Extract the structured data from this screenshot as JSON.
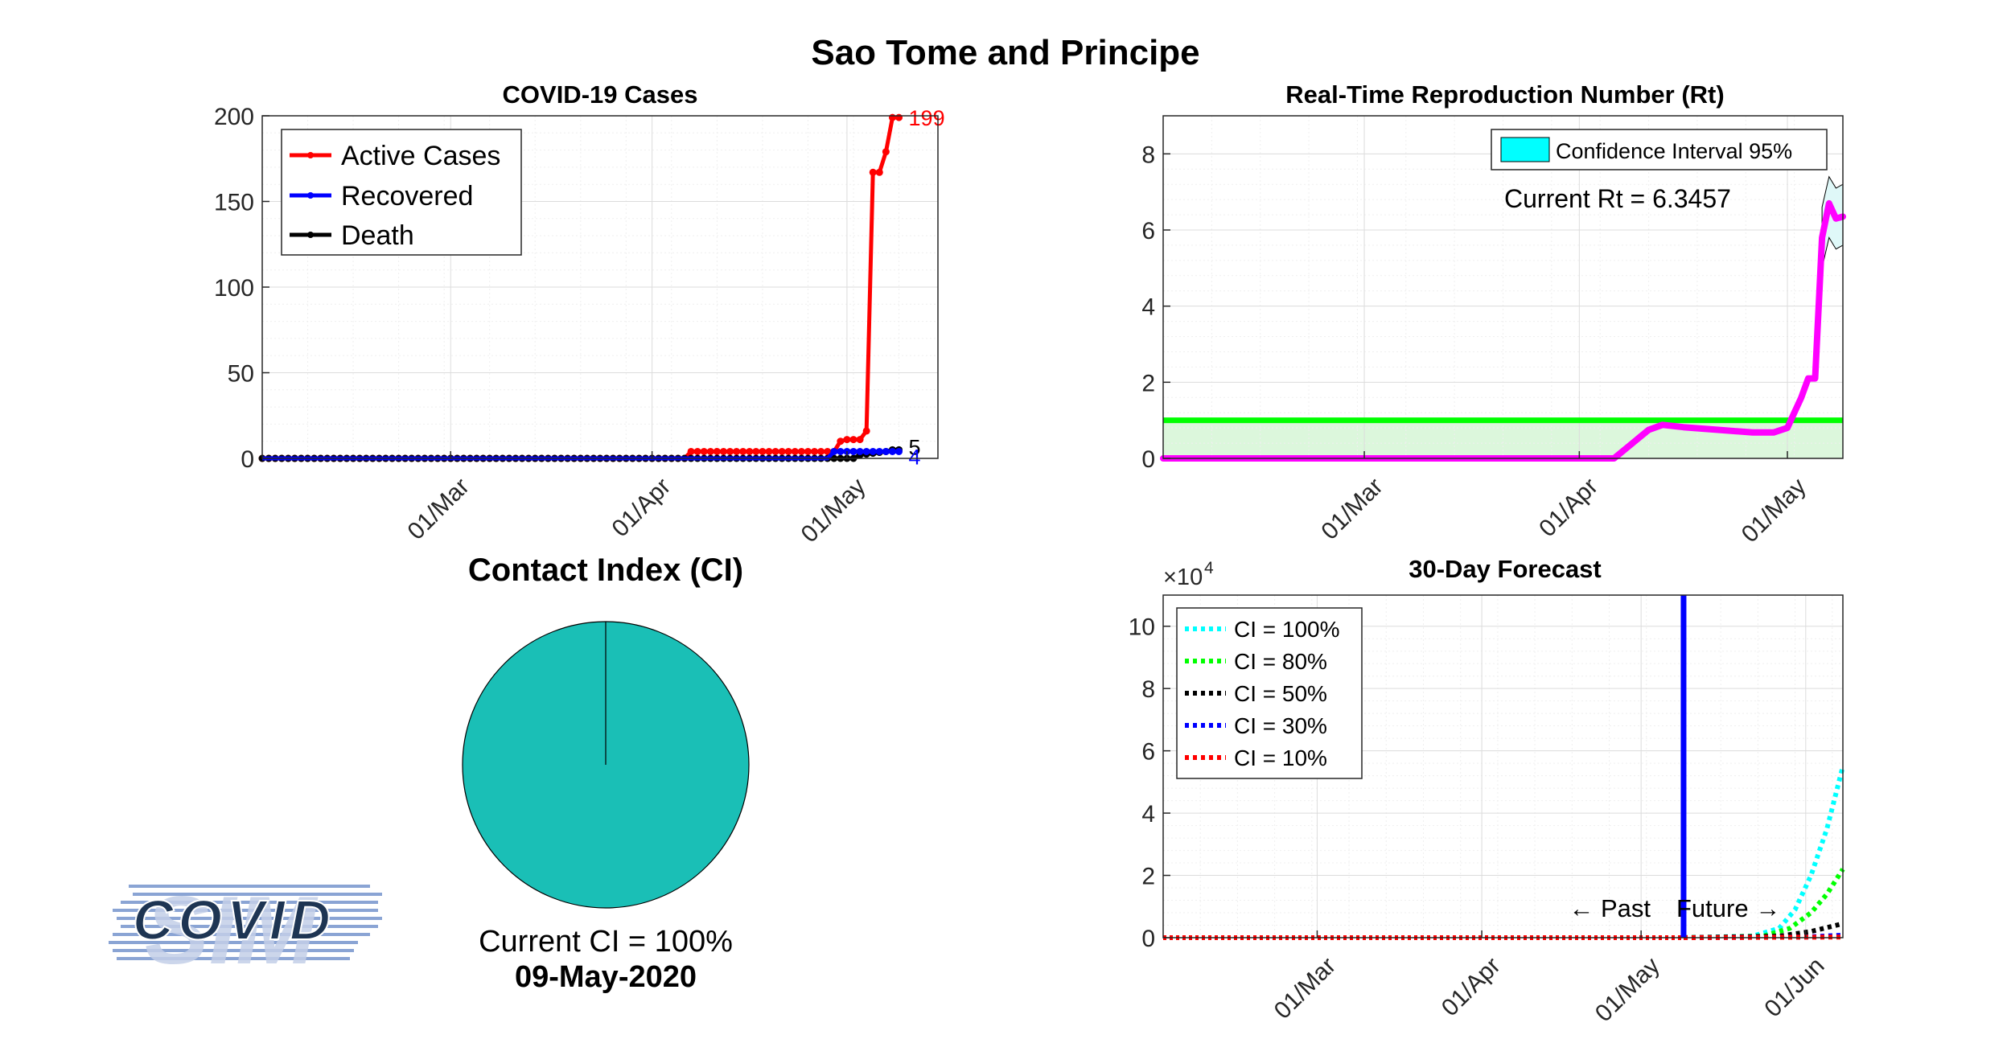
{
  "figure": {
    "title": "Sao Tome and Principe",
    "logo_text": "COVID",
    "logo_sim": "SIM"
  },
  "chart_data": [
    {
      "id": "cases",
      "type": "line",
      "title": "COVID-19 Cases",
      "xlabel": "",
      "ylabel": "",
      "x_start": "2020-02-01",
      "x_end": "2020-05-09",
      "xlim": [
        "2020-02-01",
        "2020-05-15"
      ],
      "ylim": [
        0,
        200
      ],
      "yticks": [
        0,
        50,
        100,
        150,
        200
      ],
      "xtick_labels": [
        "01/Mar",
        "01/Apr",
        "01/May"
      ],
      "xtick_dates": [
        "2020-03-01",
        "2020-04-01",
        "2020-05-01"
      ],
      "grid": true,
      "legend_position": "top-left",
      "series": [
        {
          "name": "Active Cases",
          "color": "#ff0000",
          "points": [
            [
              "2020-02-01",
              0
            ],
            [
              "2020-04-06",
              0
            ],
            [
              "2020-04-07",
              4
            ],
            [
              "2020-04-28",
              4
            ],
            [
              "2020-04-29",
              4
            ],
            [
              "2020-04-30",
              10
            ],
            [
              "2020-05-01",
              11
            ],
            [
              "2020-05-02",
              11
            ],
            [
              "2020-05-03",
              11
            ],
            [
              "2020-05-04",
              16
            ],
            [
              "2020-05-05",
              167
            ],
            [
              "2020-05-06",
              167
            ],
            [
              "2020-05-07",
              179
            ],
            [
              "2020-05-08",
              199
            ],
            [
              "2020-05-09",
              199
            ]
          ],
          "end_label": "199"
        },
        {
          "name": "Recovered",
          "color": "#0000ff",
          "points": [
            [
              "2020-02-01",
              0
            ],
            [
              "2020-04-28",
              0
            ],
            [
              "2020-04-29",
              4
            ],
            [
              "2020-05-09",
              4
            ]
          ],
          "end_label": "4"
        },
        {
          "name": "Death",
          "color": "#000000",
          "points": [
            [
              "2020-02-01",
              0
            ],
            [
              "2020-05-02",
              0
            ],
            [
              "2020-05-03",
              2
            ],
            [
              "2020-05-05",
              3
            ],
            [
              "2020-05-07",
              4
            ],
            [
              "2020-05-08",
              5
            ],
            [
              "2020-05-09",
              5
            ]
          ],
          "end_label": "5"
        }
      ]
    },
    {
      "id": "rt",
      "type": "line",
      "title": "Real-Time Reproduction Number (Rt)",
      "xlabel": "",
      "ylabel": "",
      "x_start": "2020-02-01",
      "x_end": "2020-05-09",
      "xlim": [
        "2020-02-01",
        "2020-05-09"
      ],
      "ylim": [
        0,
        9
      ],
      "yticks": [
        0,
        2,
        4,
        6,
        8
      ],
      "xtick_labels": [
        "01/Mar",
        "01/Apr",
        "01/May"
      ],
      "xtick_dates": [
        "2020-03-01",
        "2020-04-01",
        "2020-05-01"
      ],
      "grid": true,
      "threshold": 1,
      "legend_position": "top-right",
      "legend_label": "Confidence Interval 95%",
      "annotation": "Current Rt = 6.3457",
      "series": [
        {
          "name": "",
          "color": "#ff00ff",
          "points": [
            [
              "2020-02-01",
              0
            ],
            [
              "2020-04-06",
              0
            ],
            [
              "2020-04-08",
              0.3
            ],
            [
              "2020-04-11",
              0.75
            ],
            [
              "2020-04-13",
              0.88
            ],
            [
              "2020-04-16",
              0.82
            ],
            [
              "2020-04-21",
              0.75
            ],
            [
              "2020-04-26",
              0.68
            ],
            [
              "2020-04-29",
              0.68
            ],
            [
              "2020-05-01",
              0.8
            ],
            [
              "2020-05-02",
              1.2
            ],
            [
              "2020-05-03",
              1.6
            ],
            [
              "2020-05-04",
              2.1
            ],
            [
              "2020-05-05",
              2.1
            ],
            [
              "2020-05-06",
              5.8
            ],
            [
              "2020-05-07",
              6.7
            ],
            [
              "2020-05-08",
              6.3
            ],
            [
              "2020-05-09",
              6.35
            ]
          ]
        }
      ],
      "ci_upper": [
        [
          "2020-05-06",
          6.6
        ],
        [
          "2020-05-07",
          7.4
        ],
        [
          "2020-05-08",
          7.1
        ],
        [
          "2020-05-09",
          7.2
        ]
      ],
      "ci_lower": [
        [
          "2020-05-06",
          5.0
        ],
        [
          "2020-05-07",
          5.8
        ],
        [
          "2020-05-08",
          5.5
        ],
        [
          "2020-05-09",
          5.6
        ]
      ]
    },
    {
      "id": "ci",
      "type": "pie",
      "title": "Contact Index (CI)",
      "values": [
        100
      ],
      "color": "#1abfb6",
      "current_label": "Current CI = 100%",
      "date_label": "09-May-2020"
    },
    {
      "id": "forecast",
      "type": "line",
      "title": "30-Day Forecast",
      "xlabel": "",
      "ylabel": "",
      "y_scale_label": "×10",
      "y_scale_exp": "4",
      "x_start": "2020-02-01",
      "x_end": "2020-06-08",
      "xlim": [
        "2020-02-01",
        "2020-06-08"
      ],
      "ylim": [
        0,
        11
      ],
      "yticks": [
        0,
        2,
        4,
        6,
        8,
        10
      ],
      "xtick_labels": [
        "01/Mar",
        "01/Apr",
        "01/May",
        "01/Jun"
      ],
      "xtick_dates": [
        "2020-03-01",
        "2020-04-01",
        "2020-05-01",
        "2020-06-01"
      ],
      "grid": true,
      "today": "2020-05-09",
      "past_label": "← Past",
      "future_label": "Future →",
      "legend_position": "top-left",
      "series": [
        {
          "name": "CI = 100%",
          "color": "#00ffff",
          "points": [
            [
              "2020-05-09",
              0
            ],
            [
              "2020-05-22",
              0.05
            ],
            [
              "2020-05-27",
              0.3
            ],
            [
              "2020-05-30",
              0.9
            ],
            [
              "2020-06-02",
              2.0
            ],
            [
              "2020-06-05",
              3.5
            ],
            [
              "2020-06-08",
              5.5
            ]
          ]
        },
        {
          "name": "CI = 80%",
          "color": "#00ff00",
          "points": [
            [
              "2020-05-09",
              0
            ],
            [
              "2020-05-24",
              0.05
            ],
            [
              "2020-05-29",
              0.3
            ],
            [
              "2020-06-02",
              0.8
            ],
            [
              "2020-06-05",
              1.4
            ],
            [
              "2020-06-08",
              2.2
            ]
          ]
        },
        {
          "name": "CI = 50%",
          "color": "#000000",
          "points": [
            [
              "2020-05-09",
              0
            ],
            [
              "2020-05-27",
              0.05
            ],
            [
              "2020-06-02",
              0.2
            ],
            [
              "2020-06-08",
              0.45
            ]
          ]
        },
        {
          "name": "CI = 30%",
          "color": "#0000ff",
          "points": [
            [
              "2020-05-09",
              0
            ],
            [
              "2020-06-01",
              0.02
            ],
            [
              "2020-06-08",
              0.08
            ]
          ]
        },
        {
          "name": "CI = 10%",
          "color": "#ff0000",
          "points": [
            [
              "2020-05-09",
              0
            ],
            [
              "2020-06-08",
              0.02
            ]
          ]
        }
      ],
      "past_series_color": "#ff0000"
    }
  ]
}
